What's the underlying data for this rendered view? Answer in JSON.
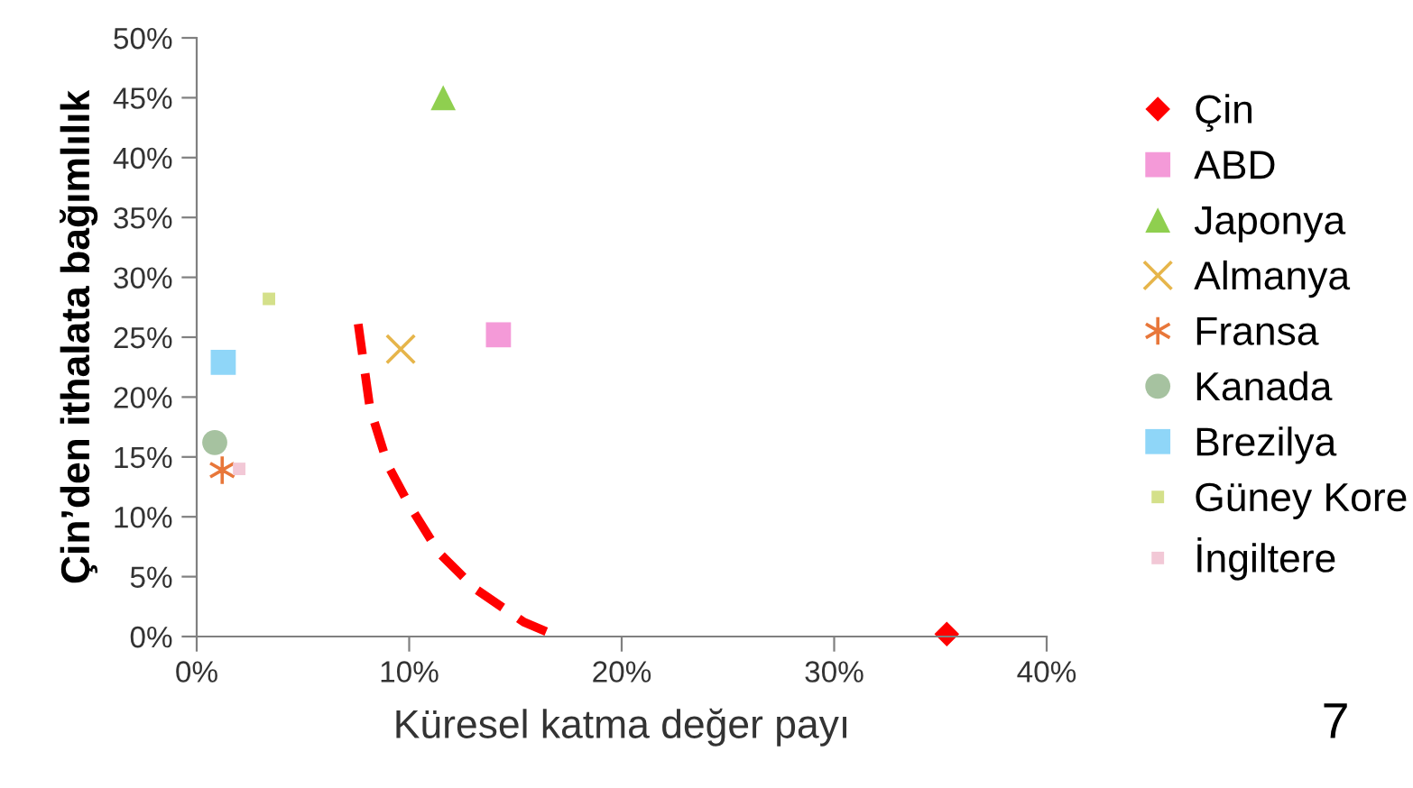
{
  "chart_data": {
    "type": "scatter",
    "xlabel": "Küresel katma değer payı",
    "ylabel": "Çin’den ithalata bağımlılık",
    "xlim": [
      0,
      40
    ],
    "ylim": [
      0,
      50
    ],
    "xticks": [
      {
        "value": 0,
        "label": "0%"
      },
      {
        "value": 10,
        "label": "10%"
      },
      {
        "value": 20,
        "label": "20%"
      },
      {
        "value": 30,
        "label": "30%"
      },
      {
        "value": 40,
        "label": "40%"
      }
    ],
    "yticks": [
      {
        "value": 0,
        "label": "0%"
      },
      {
        "value": 5,
        "label": "5%"
      },
      {
        "value": 10,
        "label": "10%"
      },
      {
        "value": 15,
        "label": "15%"
      },
      {
        "value": 20,
        "label": "20%"
      },
      {
        "value": 25,
        "label": "25%"
      },
      {
        "value": 30,
        "label": "30%"
      },
      {
        "value": 35,
        "label": "35%"
      },
      {
        "value": 40,
        "label": "40%"
      },
      {
        "value": 45,
        "label": "45%"
      },
      {
        "value": 50,
        "label": "50%"
      }
    ],
    "grid": false,
    "legend": "right",
    "annotations": [
      "7"
    ],
    "series": [
      {
        "name": "Çin",
        "color": "#ff0000",
        "marker": "diamond",
        "x": [
          35.3
        ],
        "values": [
          0.2
        ]
      },
      {
        "name": "ABD",
        "color": "#f49ad8",
        "marker": "square",
        "x": [
          14.2
        ],
        "values": [
          25.2
        ]
      },
      {
        "name": "Japonya",
        "color": "#8fcf4f",
        "marker": "triangle",
        "x": [
          11.6
        ],
        "values": [
          45.0
        ]
      },
      {
        "name": "Almanya",
        "color": "#e6b54a",
        "marker": "cross",
        "x": [
          9.6
        ],
        "values": [
          24.0
        ]
      },
      {
        "name": "Fransa",
        "color": "#e8773a",
        "marker": "cross",
        "x": [
          1.2
        ],
        "values": [
          13.9
        ]
      },
      {
        "name": "Kanada",
        "color": "#a6c2a0",
        "marker": "circle",
        "x": [
          0.85
        ],
        "values": [
          16.2
        ]
      },
      {
        "name": "Brezilya",
        "color": "#8fd6f8",
        "marker": "square",
        "x": [
          1.25
        ],
        "values": [
          22.9
        ]
      },
      {
        "name": "Güney Kore",
        "color": "#d4e08a",
        "marker": "square",
        "x": [
          3.4
        ],
        "values": [
          28.2
        ]
      },
      {
        "name": "İngiltere",
        "color": "#f2c8d6",
        "marker": "square",
        "x": [
          2.0
        ],
        "values": [
          14.0
        ]
      },
      {
        "type": "line",
        "color": "#ff0000",
        "line_style": "dashed",
        "marker": "none",
        "x": [
          7.6,
          8.15,
          9.0,
          10.0,
          11.4,
          13.1,
          15.4,
          17.0
        ],
        "values": [
          26.1,
          19.1,
          14.3,
          11.0,
          7.0,
          4.0,
          1.2,
          0
        ]
      }
    ]
  }
}
